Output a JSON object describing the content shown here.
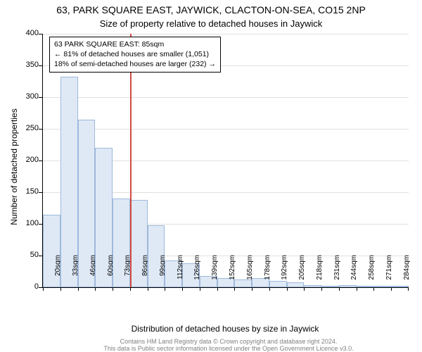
{
  "title_main": "63, PARK SQUARE EAST, JAYWICK, CLACTON-ON-SEA, CO15 2NP",
  "title_sub": "Size of property relative to detached houses in Jaywick",
  "ylabel": "Number of detached properties",
  "xlabel": "Distribution of detached houses by size in Jaywick",
  "footer_line1": "Contains HM Land Registry data © Crown copyright and database right 2024.",
  "footer_line2": "This data is Public sector information licensed under the Open Government Licence v3.0.",
  "legend_line1": "63 PARK SQUARE EAST: 85sqm",
  "legend_line2": "← 81% of detached houses are smaller (1,051)",
  "legend_line3": "18% of semi-detached houses are larger (232) →",
  "chart": {
    "type": "histogram",
    "ylim": [
      0,
      400
    ],
    "ytick_step": 50,
    "background_color": "#ffffff",
    "grid_color": "#000000",
    "grid_opacity": 0.12,
    "bar_fill": "#dfe9f5",
    "bar_stroke": "#9db8db",
    "marker_color": "#d24a43",
    "marker_x_value": 85,
    "x_start": 20,
    "x_step": 13,
    "categories": [
      "20sqm",
      "33sqm",
      "46sqm",
      "60sqm",
      "73sqm",
      "86sqm",
      "99sqm",
      "112sqm",
      "126sqm",
      "139sqm",
      "152sqm",
      "165sqm",
      "178sqm",
      "192sqm",
      "205sqm",
      "218sqm",
      "231sqm",
      "244sqm",
      "258sqm",
      "271sqm",
      "284sqm"
    ],
    "values": [
      115,
      332,
      265,
      220,
      140,
      138,
      98,
      42,
      38,
      18,
      14,
      12,
      14,
      10,
      8,
      3,
      2,
      3,
      2,
      2,
      2
    ],
    "title_fontsize": 14,
    "subtitle_fontsize": 13,
    "label_fontsize": 12,
    "tick_fontsize": 11
  }
}
